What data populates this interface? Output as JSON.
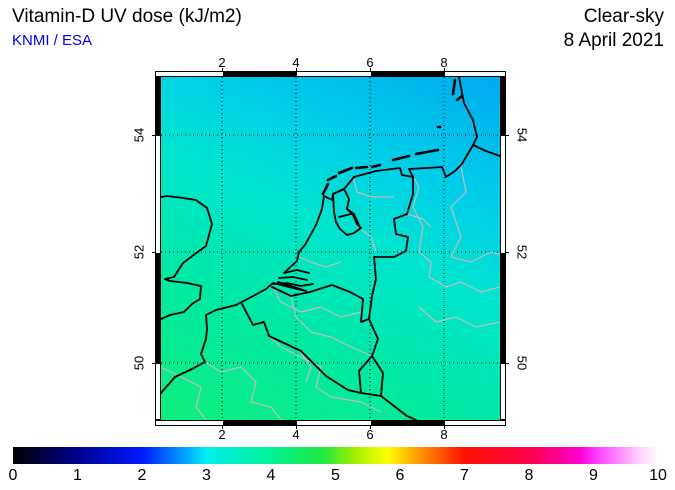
{
  "header": {
    "title": "Vitamin-D UV dose (kJ/m2)",
    "source": "KNMI / ESA",
    "source_color": "#0000ee",
    "condition": "Clear-sky",
    "date": "8 April 2021"
  },
  "map": {
    "lon_ticks": [
      "2",
      "4",
      "6",
      "8"
    ],
    "lat_ticks": [
      "54",
      "52",
      "50"
    ],
    "grid_style": "dotted",
    "coast_color": "#000000",
    "admin_border_color": "#bfbfbf"
  },
  "colorbar": {
    "ticks": [
      "0",
      "1",
      "2",
      "3",
      "4",
      "5",
      "6",
      "7",
      "8",
      "9",
      "10"
    ],
    "min": 0,
    "max": 10,
    "units": "kJ/m2",
    "stops": [
      {
        "value": 0,
        "color": "#000000"
      },
      {
        "value": 1,
        "color": "#000090"
      },
      {
        "value": 2,
        "color": "#0018ff"
      },
      {
        "value": 3,
        "color": "#00eeee"
      },
      {
        "value": 4,
        "color": "#00f294"
      },
      {
        "value": 5,
        "color": "#1fe743"
      },
      {
        "value": 6,
        "color": "#ffc400"
      },
      {
        "value": 7,
        "color": "#ff1000"
      },
      {
        "value": 8,
        "color": "#ff0048"
      },
      {
        "value": 9,
        "color": "#ff30ff"
      },
      {
        "value": 10,
        "color": "#ffffff"
      }
    ]
  },
  "chart_data": {
    "type": "heatmap",
    "title": "Vitamin-D UV dose (kJ/m2)",
    "subtitle": "Clear-sky, 8 April 2021",
    "source": "KNMI / ESA",
    "region": {
      "lon_min": 0.35,
      "lon_max": 9.55,
      "lat_min": 48.9,
      "lat_max": 55.05
    },
    "x_ticks_lon": [
      2,
      4,
      6,
      8
    ],
    "y_ticks_lat": [
      54,
      52,
      50
    ],
    "scale": {
      "min": 0,
      "max": 10,
      "units": "kJ/m2"
    },
    "field_values_estimated": {
      "top_left": 3.1,
      "top_right": 2.8,
      "center": 3.3,
      "bottom_left": 4.0,
      "bottom_right": 3.9
    },
    "gradient_direction": "dose increases from north-east (blue-cyan, ~2.8) to south (spring-green, ~4.0)",
    "legend_position": "bottom",
    "grid": true
  }
}
